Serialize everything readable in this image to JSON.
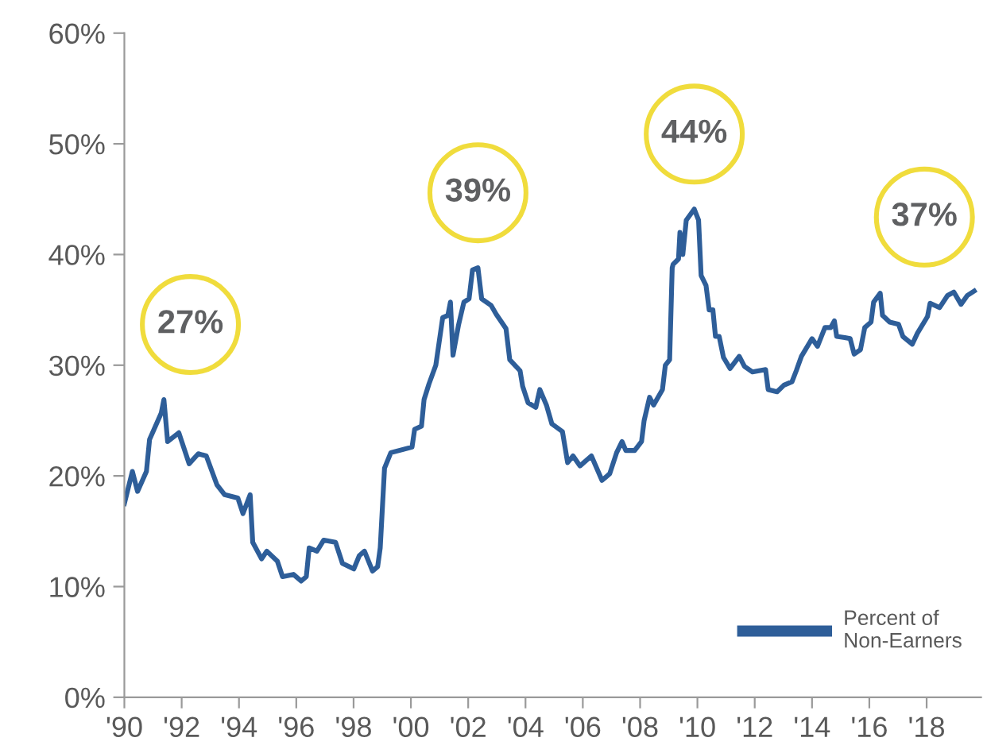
{
  "chart_data": {
    "type": "line",
    "x": [
      1990.0,
      1990.28,
      1990.46,
      1990.77,
      1990.88,
      1991.29,
      1991.38,
      1991.51,
      1991.9,
      1992.26,
      1992.58,
      1992.86,
      1993.23,
      1993.5,
      1993.96,
      1994.14,
      1994.39,
      1994.48,
      1994.79,
      1994.97,
      1995.34,
      1995.52,
      1995.9,
      1996.17,
      1996.35,
      1996.45,
      1996.72,
      1996.96,
      1997.37,
      1997.61,
      1998.01,
      1998.2,
      1998.38,
      1998.66,
      1998.84,
      1998.93,
      1999.08,
      1999.3,
      2000.04,
      2000.13,
      2000.37,
      2000.46,
      2000.63,
      2000.87,
      2001.11,
      2001.29,
      2001.38,
      2001.47,
      2001.66,
      2001.85,
      2002.03,
      2002.15,
      2002.34,
      2002.47,
      2002.8,
      2002.98,
      2003.32,
      2003.45,
      2003.81,
      2003.9,
      2004.09,
      2004.36,
      2004.5,
      2004.73,
      2004.92,
      2005.29,
      2005.47,
      2005.66,
      2005.9,
      2006.3,
      2006.67,
      2006.94,
      2007.18,
      2007.37,
      2007.5,
      2007.81,
      2008.05,
      2008.14,
      2008.33,
      2008.47,
      2008.78,
      2008.88,
      2009.03,
      2009.12,
      2009.15,
      2009.34,
      2009.39,
      2009.49,
      2009.61,
      2009.89,
      2010.04,
      2010.13,
      2010.3,
      2010.41,
      2010.54,
      2010.63,
      2010.76,
      2010.91,
      2011.14,
      2011.46,
      2011.64,
      2011.92,
      2012.38,
      2012.47,
      2012.78,
      2013.02,
      2013.3,
      2013.45,
      2013.63,
      2014.0,
      2014.19,
      2014.45,
      2014.65,
      2014.78,
      2014.86,
      2015.14,
      2015.33,
      2015.47,
      2015.69,
      2015.84,
      2016.06,
      2016.15,
      2016.38,
      2016.46,
      2016.71,
      2017.02,
      2017.17,
      2017.5,
      2017.68,
      2018.03,
      2018.12,
      2018.45,
      2018.73,
      2018.95,
      2019.2,
      2019.42,
      2019.66
    ],
    "series": [
      {
        "name": "Percent of\nNon-Earners",
        "color": "#2e5e99",
        "values": [
          17.5,
          20.4,
          18.6,
          20.4,
          23.3,
          25.7,
          26.9,
          23.1,
          23.9,
          21.1,
          22.0,
          21.8,
          19.2,
          18.3,
          18.0,
          16.6,
          18.3,
          14.0,
          12.5,
          13.2,
          12.3,
          10.9,
          11.1,
          10.5,
          10.9,
          13.5,
          13.2,
          14.2,
          14.0,
          12.1,
          11.6,
          12.8,
          13.2,
          11.4,
          11.8,
          13.5,
          20.7,
          22.1,
          22.6,
          24.2,
          24.5,
          26.9,
          28.3,
          30.0,
          34.3,
          34.5,
          35.7,
          30.9,
          33.6,
          35.7,
          36.0,
          38.6,
          38.8,
          36.0,
          35.4,
          34.6,
          33.3,
          30.5,
          29.5,
          28.1,
          26.6,
          26.2,
          27.8,
          26.4,
          24.7,
          24.0,
          21.2,
          21.8,
          20.9,
          21.8,
          19.6,
          20.2,
          22.1,
          23.1,
          22.3,
          22.3,
          23.1,
          25.0,
          27.1,
          26.4,
          27.8,
          30.0,
          30.5,
          38.8,
          39.1,
          39.6,
          42.0,
          40.0,
          43.1,
          44.1,
          43.1,
          38.1,
          37.2,
          35.0,
          35.0,
          32.6,
          32.6,
          30.7,
          29.7,
          30.8,
          29.9,
          29.4,
          29.6,
          27.8,
          27.6,
          28.2,
          28.5,
          29.5,
          30.8,
          32.4,
          31.7,
          33.4,
          33.4,
          34.0,
          32.6,
          32.5,
          32.4,
          31.0,
          31.4,
          33.4,
          33.9,
          35.7,
          36.5,
          34.5,
          33.9,
          33.7,
          32.6,
          31.9,
          32.9,
          34.4,
          35.6,
          35.2,
          36.3,
          36.6,
          35.5,
          36.3,
          36.7
        ]
      }
    ],
    "xlim": [
      1990,
      2019.9
    ],
    "xticks": [
      {
        "value": 1990,
        "label": "'90"
      },
      {
        "value": 1992,
        "label": "'92"
      },
      {
        "value": 1994,
        "label": "'94"
      },
      {
        "value": 1996,
        "label": "'96"
      },
      {
        "value": 1998,
        "label": "'98"
      },
      {
        "value": 2000,
        "label": "'00"
      },
      {
        "value": 2002,
        "label": "'02"
      },
      {
        "value": 2004,
        "label": "'04"
      },
      {
        "value": 2006,
        "label": "'06"
      },
      {
        "value": 2008,
        "label": "'08"
      },
      {
        "value": 2010,
        "label": "'10"
      },
      {
        "value": 2012,
        "label": "'12"
      },
      {
        "value": 2014,
        "label": "'14"
      },
      {
        "value": 2016,
        "label": "'16"
      },
      {
        "value": 2018,
        "label": "'18"
      }
    ],
    "ylim": [
      0,
      60
    ],
    "yticks": [
      {
        "value": 0,
        "label": "0%"
      },
      {
        "value": 10,
        "label": "10%"
      },
      {
        "value": 20,
        "label": "20%"
      },
      {
        "value": 30,
        "label": "30%"
      },
      {
        "value": 40,
        "label": "40%"
      },
      {
        "value": 50,
        "label": "50%"
      },
      {
        "value": 60,
        "label": "60%"
      }
    ],
    "annotations": [
      {
        "text": "27%",
        "x": 1991.38,
        "y": 26.9
      },
      {
        "text": "39%",
        "x": 2002.34,
        "y": 38.8
      },
      {
        "text": "44%",
        "x": 2009.89,
        "y": 44.1
      },
      {
        "text": "37%",
        "x": 2019.0,
        "y": 36.6
      }
    ],
    "grid": false,
    "legend": "bottom right",
    "marker": "none",
    "line_style": "solid"
  }
}
